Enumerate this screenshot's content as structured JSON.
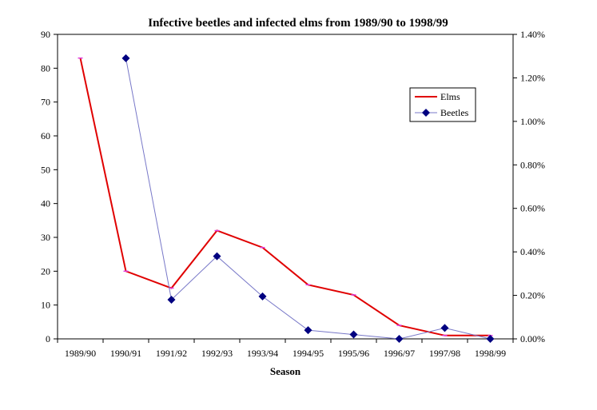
{
  "chart_data": {
    "type": "line",
    "title": "Infective beetles and infected elms from 1989/90 to 1998/99",
    "xlabel": "Season",
    "categories": [
      "1989/90",
      "1990/91",
      "1991/92",
      "1992/93",
      "1993/94",
      "1994/95",
      "1995/96",
      "1996/97",
      "1997/98",
      "1998/99"
    ],
    "left_axis": {
      "ylim": [
        0,
        90
      ],
      "ticks": [
        "0",
        "10",
        "20",
        "30",
        "40",
        "50",
        "60",
        "70",
        "80",
        "90"
      ]
    },
    "right_axis": {
      "ylim": [
        0,
        1.4
      ],
      "ticks": [
        "0.00%",
        "0.20%",
        "0.40%",
        "0.60%",
        "0.80%",
        "1.00%",
        "1.20%",
        "1.40%"
      ]
    },
    "series": [
      {
        "name": "Elms",
        "axis": "left",
        "color": "#e00000",
        "values": [
          83,
          20,
          15,
          32,
          27,
          16,
          13,
          4,
          1,
          1
        ]
      },
      {
        "name": "Beetles",
        "axis": "right",
        "color": "#000080",
        "line_color": "#7878c8",
        "values": [
          null,
          1.29,
          0.18,
          0.38,
          0.195,
          0.04,
          0.02,
          0.0,
          0.05,
          0.0
        ]
      }
    ],
    "legend_position": "top-right, inside plot"
  }
}
